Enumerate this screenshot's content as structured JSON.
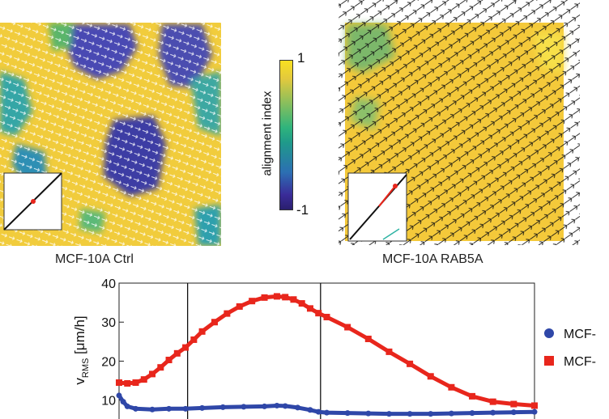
{
  "panels": {
    "ctrl": {
      "label": "MCF-10A Ctrl"
    },
    "rab5a": {
      "label": "MCF-10A RAB5A"
    }
  },
  "colorbar": {
    "label": "alignment index",
    "max_label": "1",
    "min_label": "-1"
  },
  "chart_data": {
    "type": "line",
    "title": "",
    "xlabel": "",
    "ylabel_main": "v",
    "ylabel_sub": "RMS",
    "ylabel_unit": " [μm/h]",
    "ylim": [
      6,
      40
    ],
    "yticks": [
      10,
      20,
      30,
      40
    ],
    "ytick_labels": [
      "10",
      "20",
      "30",
      "40"
    ],
    "xlim": [
      0,
      100
    ],
    "vlines": [
      16.5,
      48.5
    ],
    "legend": {
      "placement": "right"
    },
    "series": [
      {
        "name": "MCF-",
        "color": "#2f47a8",
        "marker": "circle",
        "x": [
          0,
          1,
          2,
          4,
          8,
          12,
          16,
          20,
          25,
          30,
          35,
          38,
          40,
          43,
          46,
          48,
          50,
          55,
          60,
          65,
          70,
          75,
          80,
          85,
          90,
          95,
          100
        ],
        "y": [
          11.2,
          9.6,
          8.4,
          7.8,
          7.6,
          7.8,
          7.8,
          8.0,
          8.2,
          8.3,
          8.4,
          8.6,
          8.5,
          8.1,
          7.5,
          7.0,
          6.8,
          6.7,
          6.6,
          6.5,
          6.5,
          6.5,
          6.6,
          6.7,
          6.8,
          6.9,
          7.0
        ]
      },
      {
        "name": "MCF-",
        "color": "#e8261c",
        "marker": "square",
        "x": [
          0,
          2,
          4,
          6,
          8,
          10,
          12,
          14,
          16,
          18,
          20,
          23,
          26,
          29,
          32,
          35,
          38,
          40,
          42,
          44,
          46,
          48,
          50,
          55,
          60,
          65,
          70,
          75,
          80,
          85,
          90,
          95,
          100
        ],
        "y": [
          14.5,
          14.3,
          14.5,
          15.3,
          16.7,
          18.4,
          20.3,
          22.0,
          23.5,
          25.5,
          27.6,
          30.0,
          32.2,
          34.0,
          35.4,
          36.3,
          36.6,
          36.4,
          35.8,
          34.8,
          33.5,
          32.3,
          31.3,
          28.7,
          25.7,
          22.4,
          19.3,
          16.1,
          13.3,
          11.0,
          9.6,
          9.0,
          8.6
        ]
      }
    ]
  }
}
